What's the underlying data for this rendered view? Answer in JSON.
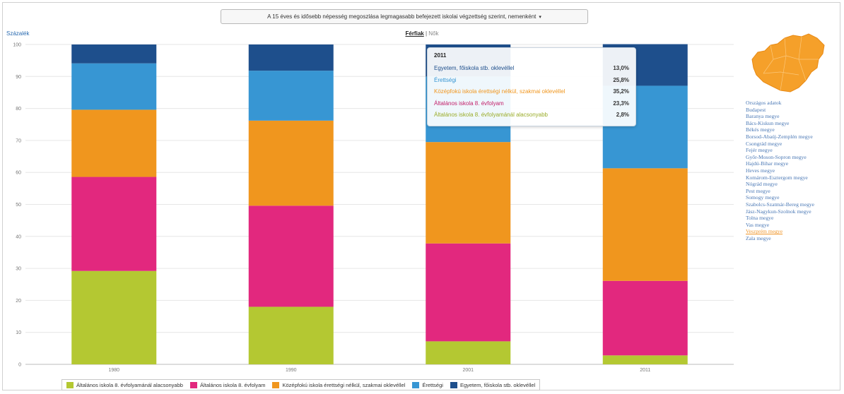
{
  "selector": {
    "label": "A 15 éves és idősebb népesség megoszlása legmagasabb befejezett iskolai végzettség szerint, nemenként",
    "caret": "▾"
  },
  "unit_label": "Százalék",
  "gender": {
    "active": "Férfiak",
    "separator": "|",
    "other": "Nők"
  },
  "chart_data": {
    "type": "bar",
    "stacked": true,
    "categories": [
      "1980",
      "1990",
      "2001",
      "2011"
    ],
    "ylim": [
      0,
      100
    ],
    "yticks": [
      0,
      10,
      20,
      30,
      40,
      50,
      60,
      70,
      80,
      90,
      100
    ],
    "grid": true,
    "legend_position": "bottom",
    "series": [
      {
        "name": "Általános iskola 8. évfolyamánál alacsonyabb",
        "color": "#b4c832",
        "values": [
          29.2,
          18.0,
          7.2,
          2.8
        ]
      },
      {
        "name": "Általános iskola 8. évfolyam",
        "color": "#e2287e",
        "values": [
          29.4,
          31.6,
          30.6,
          23.3
        ]
      },
      {
        "name": "Középfokú iskola érettségi nélkül, szakmai oklevéllel",
        "color": "#f0961e",
        "values": [
          21.0,
          26.6,
          31.7,
          35.2
        ]
      },
      {
        "name": "Érettségi",
        "color": "#3796d3",
        "values": [
          14.5,
          15.6,
          20.5,
          25.8
        ]
      },
      {
        "name": "Egyetem, főiskola stb. oklevéllel",
        "color": "#1e4f8c",
        "values": [
          5.9,
          8.2,
          10.0,
          13.0
        ]
      }
    ],
    "highlighted_category": "2011"
  },
  "tooltip": {
    "year": "2011",
    "rows": [
      {
        "label": "Egyetem, főiskola stb. oklevéllel",
        "value": "13,0%",
        "color": "#1e4f8c"
      },
      {
        "label": "Érettségi",
        "value": "25,8%",
        "color": "#3796d3"
      },
      {
        "label": "Középfokú iskola érettségi nélkül, szakmai oklevéllel",
        "value": "35,2%",
        "color": "#f0961e"
      },
      {
        "label": "Általános iskola 8. évfolyam",
        "value": "23,3%",
        "color": "#c2206a"
      },
      {
        "label": "Általános iskola 8. évfolyamánál alacsonyabb",
        "value": "2,8%",
        "color": "#9aac28"
      }
    ]
  },
  "regions": [
    "Országos adatok",
    "Budapest",
    "Baranya megye",
    "Bács-Kiskun megye",
    "Békés megye",
    "Borsod-Abaúj-Zemplén megye",
    "Csongrád megye",
    "Fejér megye",
    "Győr-Moson-Sopron megye",
    "Hajdú-Bihar megye",
    "Heves megye",
    "Komárom-Esztergom megye",
    "Nógrád megye",
    "Pest megye",
    "Somogy megye",
    "Szabolcs-Szatmár-Bereg megye",
    "Jász-Nagykun-Szolnok megye",
    "Tolna megye",
    "Vas megye",
    "Veszprém megye",
    "Zala megye"
  ],
  "selected_region": "Veszprém megye",
  "colors": {
    "map": "#f5a02a",
    "link": "#4a78b5",
    "selected": "#f0962a"
  }
}
